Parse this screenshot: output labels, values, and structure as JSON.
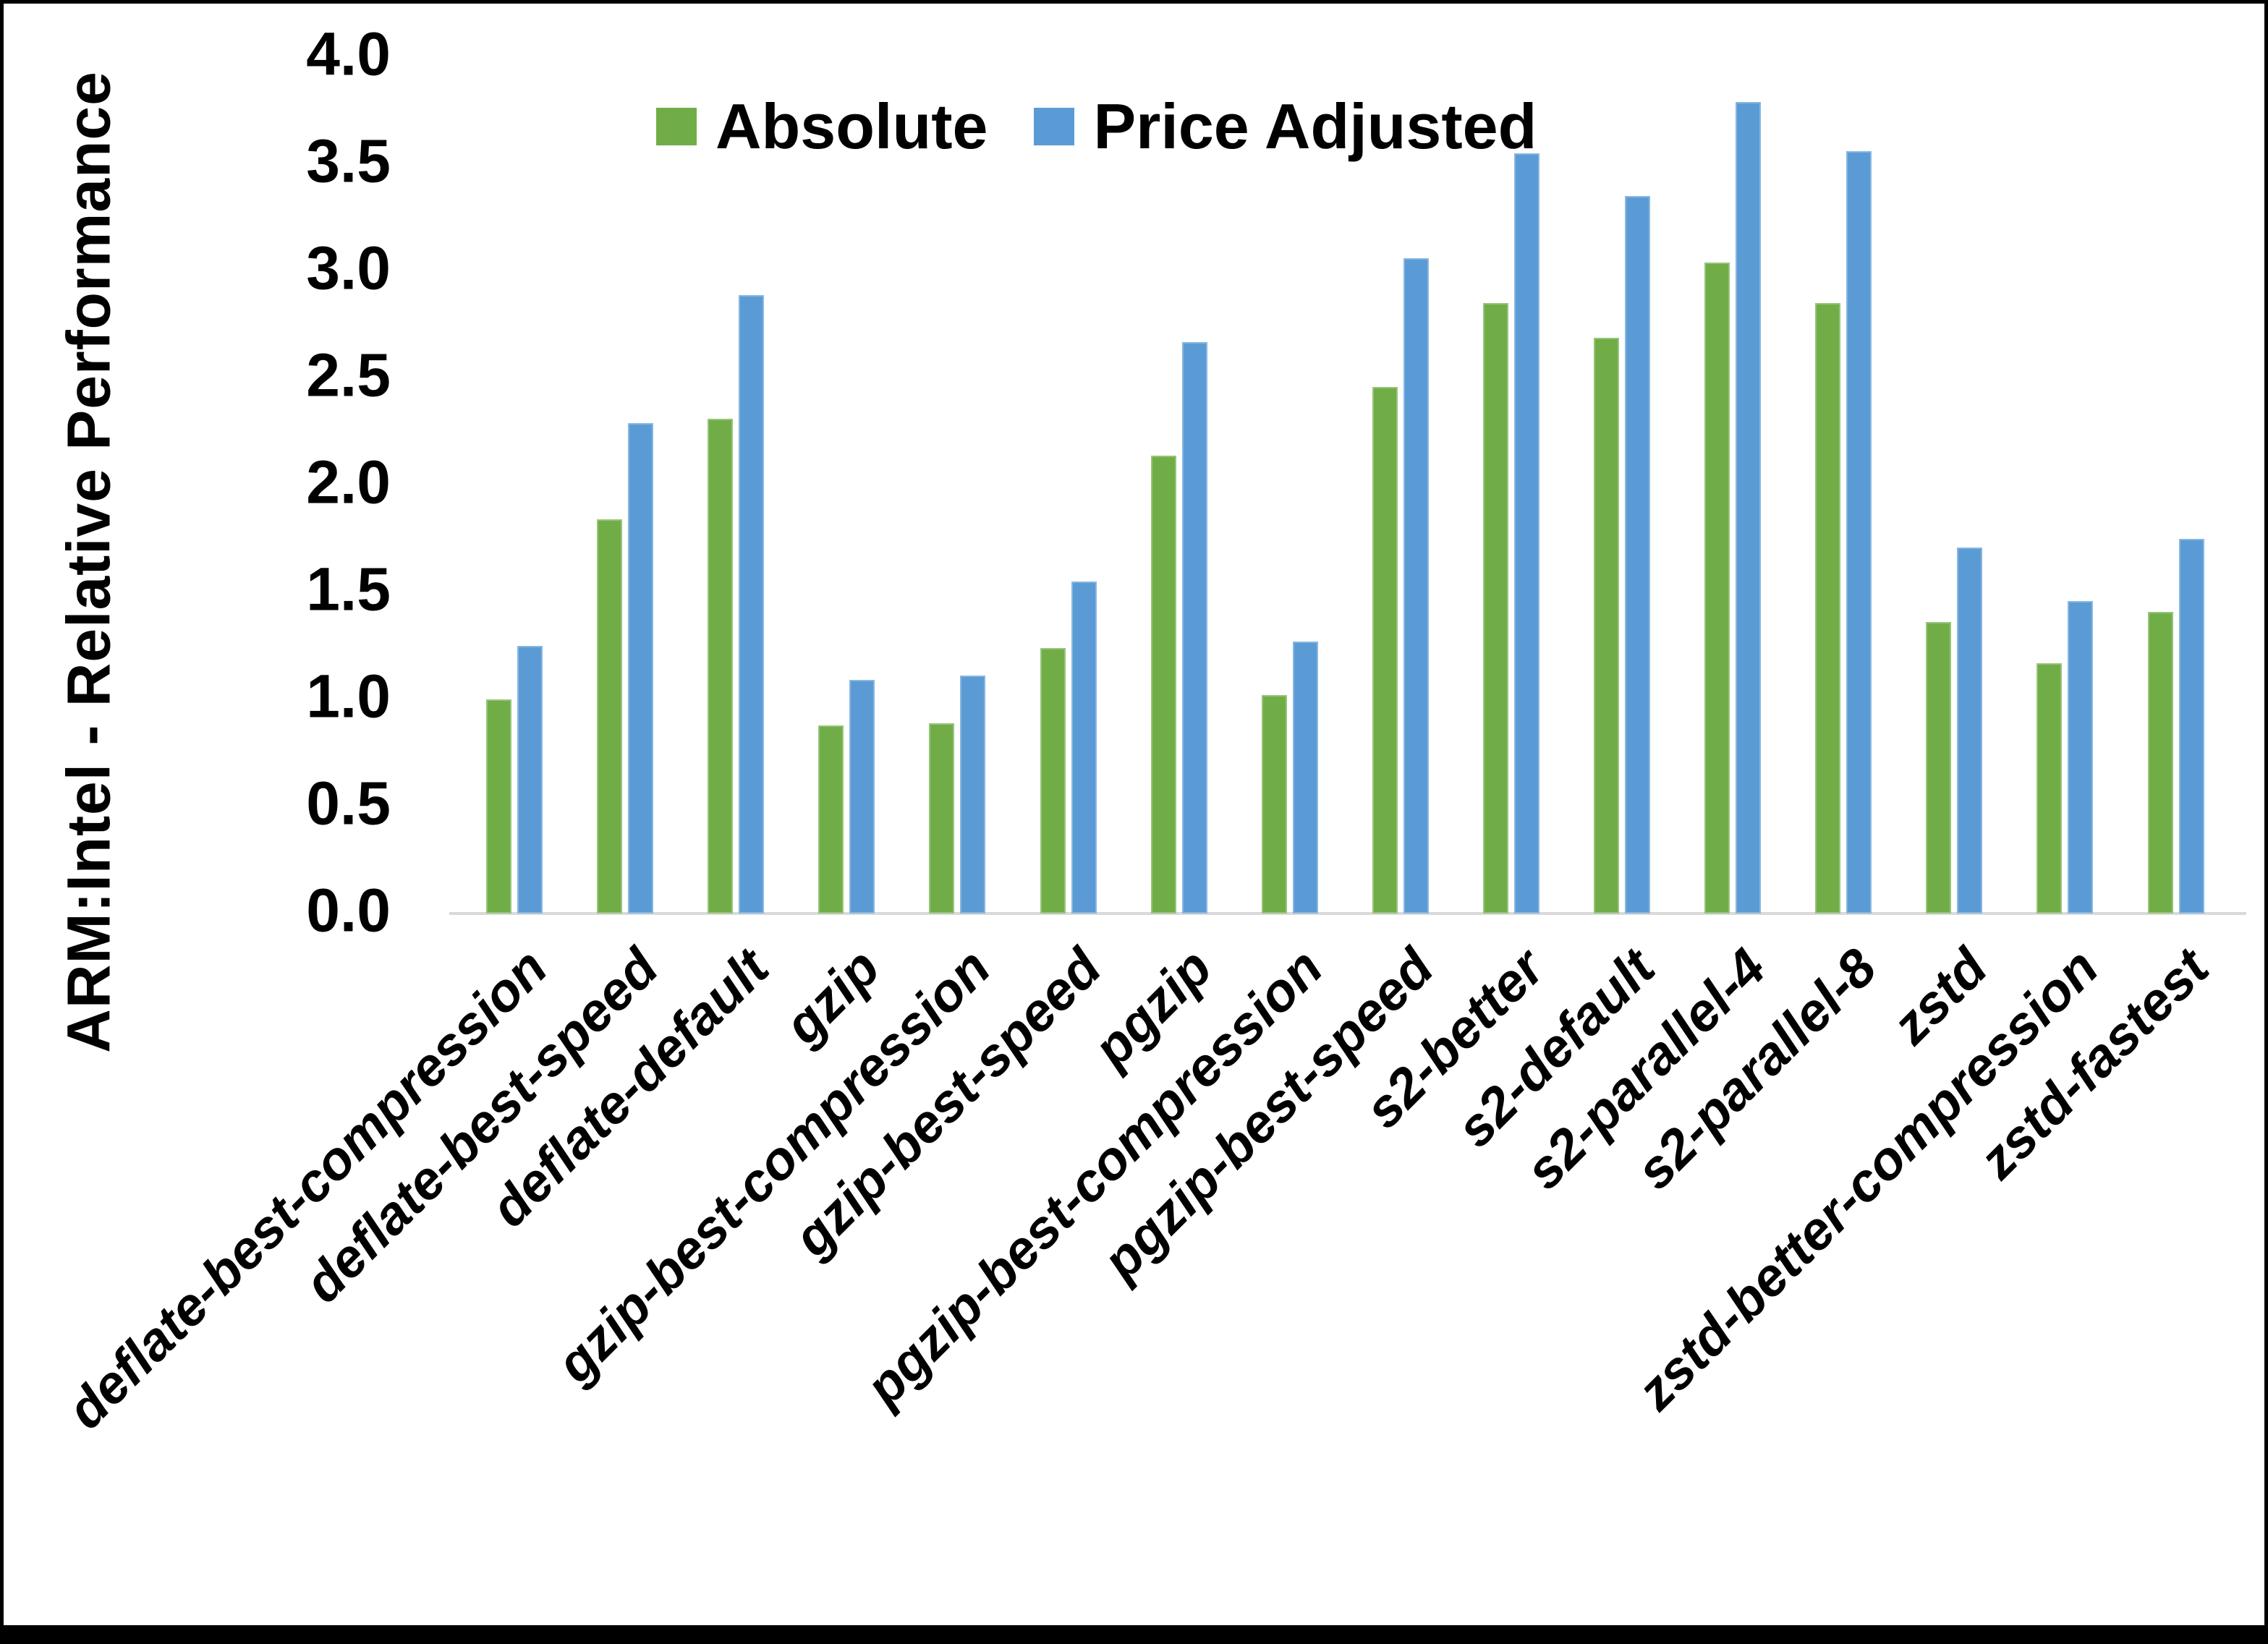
{
  "chart_data": {
    "type": "bar",
    "title": "",
    "xlabel": "",
    "ylabel": "ARM:Intel - Relative Performance",
    "ylim": [
      0.0,
      4.0
    ],
    "ytick_interval": 0.5,
    "ytick_labels": [
      "0.0",
      "0.5",
      "1.0",
      "1.5",
      "2.0",
      "2.5",
      "3.0",
      "3.5",
      "4.0"
    ],
    "grid": false,
    "legend_position": "top-center",
    "categories": [
      "deflate-best-compression",
      "deflate-best-speed",
      "deflate-default",
      "gzip",
      "gzip-best-compression",
      "gzip-best-speed",
      "pgzip",
      "pgzip-best-compression",
      "pgzip-best-speed",
      "s2-better",
      "s2-default",
      "s2-parallel-4",
      "s2-parallel-8",
      "zstd",
      "zstd-better-compression",
      "zstd-fastest"
    ],
    "series": [
      {
        "name": "Absolute",
        "color": "#70AD47",
        "values": [
          1.0,
          1.84,
          2.31,
          0.88,
          0.89,
          1.24,
          2.14,
          1.02,
          2.46,
          2.85,
          2.69,
          3.04,
          2.85,
          1.36,
          1.17,
          1.41
        ]
      },
      {
        "name": "Price Adjusted",
        "color": "#5B9BD5",
        "values": [
          1.25,
          2.29,
          2.89,
          1.09,
          1.11,
          1.55,
          2.67,
          1.27,
          3.06,
          3.55,
          3.35,
          3.79,
          3.56,
          1.71,
          1.46,
          1.75
        ]
      }
    ]
  },
  "colors": {
    "axis_line": "#d9d9d9",
    "text": "#000000",
    "background": "#ffffff",
    "frame": "#000000"
  }
}
